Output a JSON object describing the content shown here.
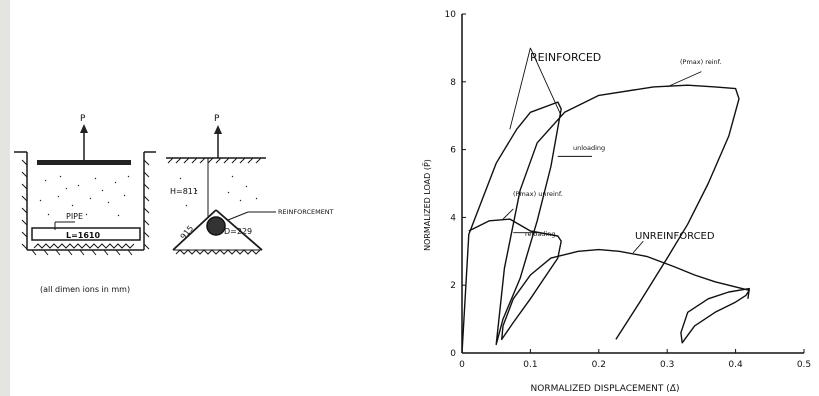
{
  "diagram": {
    "load_label_left": "P",
    "load_label_right": "P",
    "pipe_label": "PIPE",
    "length_label": "L=1610",
    "height_label": "H=811",
    "diameter_label": "D=229",
    "slant_label": "915",
    "reinforcement_label": "REINFORCEMENT",
    "units_note": "(all dimen ions in mm)"
  },
  "chart_data": {
    "type": "line",
    "xlabel": "NORMALIZED DISPLACEMENT (Δ̄)",
    "ylabel": "NORMALIZED LOAD (P̄)",
    "xlim": [
      0,
      0.5
    ],
    "ylim": [
      0,
      10
    ],
    "x_ticks": [
      "0",
      "0.1",
      "0.2",
      "0.3",
      "0.4",
      "0.5"
    ],
    "y_ticks": [
      "0",
      "2",
      "4",
      "6",
      "8",
      "10"
    ],
    "grid": false,
    "annotations": {
      "reinforced": "REINFORCED",
      "unreinforced": "UNREINFORCED",
      "pmax_reinf": "(Pmax) reinf.",
      "pmax_unreinf": "(Pmax) unreinf.",
      "unloading": "unloading",
      "reloading": "reloading"
    },
    "series": [
      {
        "values": [
          [
            0,
            0
          ],
          [
            0.01,
            3.5
          ],
          [
            0.05,
            5.6
          ],
          [
            0.08,
            6.6
          ],
          [
            0.1,
            7.1
          ],
          [
            0.14,
            7.4
          ],
          [
            0.145,
            7.2
          ],
          [
            0.13,
            5.5
          ],
          [
            0.11,
            3.9
          ],
          [
            0.085,
            2.2
          ],
          [
            0.06,
            1.0
          ],
          [
            0.05,
            0.25
          ],
          [
            0.062,
            2.5
          ],
          [
            0.085,
            4.8
          ],
          [
            0.11,
            6.2
          ],
          [
            0.15,
            7.1
          ],
          [
            0.2,
            7.6
          ],
          [
            0.28,
            7.85
          ],
          [
            0.33,
            7.9
          ],
          [
            0.37,
            7.85
          ],
          [
            0.4,
            7.8
          ],
          [
            0.405,
            7.5
          ],
          [
            0.39,
            6.4
          ],
          [
            0.36,
            5.0
          ],
          [
            0.33,
            3.8
          ],
          [
            0.3,
            2.8
          ],
          [
            0.26,
            1.5
          ],
          [
            0.225,
            0.4
          ]
        ]
      },
      {
        "values": [
          [
            0.01,
            3.6
          ],
          [
            0.04,
            3.9
          ],
          [
            0.07,
            3.95
          ],
          [
            0.1,
            3.6
          ],
          [
            0.14,
            3.45
          ],
          [
            0.145,
            3.3
          ],
          [
            0.14,
            2.8
          ],
          [
            0.12,
            2.2
          ],
          [
            0.1,
            1.6
          ],
          [
            0.075,
            0.9
          ],
          [
            0.058,
            0.4
          ],
          [
            0.06,
            0.8
          ],
          [
            0.075,
            1.6
          ],
          [
            0.1,
            2.3
          ],
          [
            0.13,
            2.8
          ],
          [
            0.17,
            3.0
          ],
          [
            0.2,
            3.05
          ],
          [
            0.23,
            3.0
          ],
          [
            0.27,
            2.85
          ],
          [
            0.31,
            2.55
          ],
          [
            0.34,
            2.3
          ],
          [
            0.37,
            2.1
          ],
          [
            0.4,
            1.95
          ],
          [
            0.42,
            1.85
          ],
          [
            0.415,
            1.7
          ],
          [
            0.4,
            1.5
          ],
          [
            0.37,
            1.2
          ],
          [
            0.34,
            0.8
          ],
          [
            0.322,
            0.3
          ],
          [
            0.32,
            0.6
          ],
          [
            0.33,
            1.2
          ],
          [
            0.36,
            1.6
          ],
          [
            0.39,
            1.8
          ],
          [
            0.42,
            1.9
          ],
          [
            0.418,
            1.6
          ]
        ]
      }
    ]
  }
}
